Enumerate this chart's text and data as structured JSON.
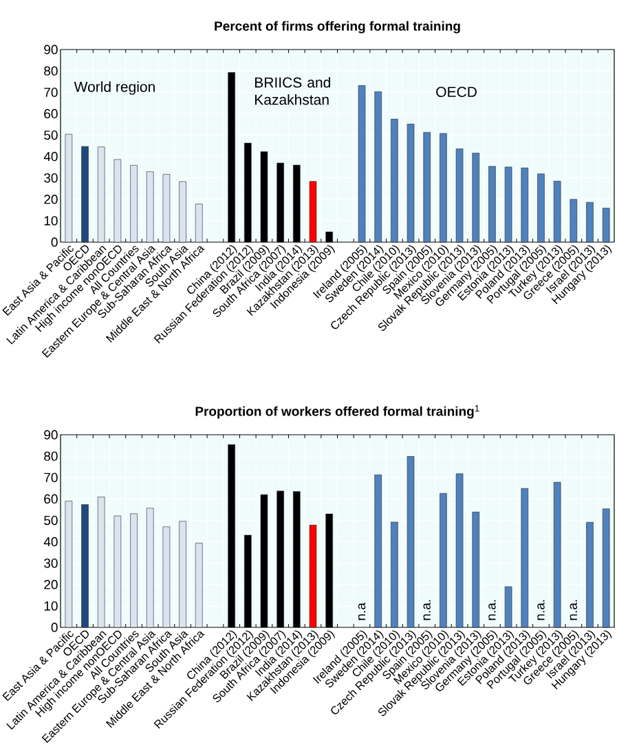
{
  "chart_data": [
    {
      "type": "bar",
      "title": "**Percent of firms offering formal training**",
      "categories": [
        "East Asia & Pacific",
        "OECD",
        "Latin America & Caribbean",
        "High income nonOECD",
        "All Countries",
        "Eastern Europe & Central Asia",
        "Sub-Saharan Africa",
        "South Asia",
        "Middle East & North Africa",
        null,
        "China (2012)",
        "Russian Federation (2012)",
        "Brazil (2009)",
        "South Africa (2007)",
        "India (2014)",
        "Kazakhstan (2013)",
        "Indonesia (2009)",
        null,
        "Ireland (2005)",
        "Sweden (2014)",
        "Chile (2010)",
        "Czech Republic (2013)",
        "Spain (2005)",
        "Mexico (2010)",
        "Slovak Republic (2013)",
        "Slovenia (2013)",
        "Germany (2005)",
        "Estonia (2013)",
        "Poland (2013)",
        "Portugal (2005)",
        "Turkey (2013)",
        "Greece (2005)",
        "Israel (2013)",
        "Hungary (2013)"
      ],
      "values": [
        50.4,
        44.7,
        44.5,
        38.6,
        35.9,
        32.9,
        31.7,
        28.3,
        17.8,
        null,
        79.3,
        46.3,
        42.3,
        37,
        36,
        28.4,
        4.8,
        null,
        73.2,
        70.3,
        57.5,
        55.2,
        51.3,
        50.8,
        43.6,
        41.6,
        35.4,
        35.1,
        34.7,
        31.9,
        28.5,
        20,
        18.6,
        15.9
      ],
      "colors": [
        "#dce3f0",
        "#1f497d",
        "#dce3f0",
        "#dce3f0",
        "#dce3f0",
        "#dce3f0",
        "#dce3f0",
        "#dce3f0",
        "#dce3f0",
        null,
        "#000000",
        "#000000",
        "#000000",
        "#000000",
        "#000000",
        "#ff0000",
        "#000000",
        null,
        "#4f81bd",
        "#4f81bd",
        "#4f81bd",
        "#4f81bd",
        "#4f81bd",
        "#4f81bd",
        "#4f81bd",
        "#4f81bd",
        "#4f81bd",
        "#4f81bd",
        "#4f81bd",
        "#4f81bd",
        "#4f81bd",
        "#4f81bd",
        "#4f81bd",
        "#4f81bd"
      ],
      "ylim": [
        0,
        90
      ],
      "yticks": [
        0,
        10,
        20,
        30,
        40,
        50,
        60,
        70,
        80,
        90
      ],
      "grid": true,
      "annotations": [
        "World region",
        "BRIICS and Kazakhstan",
        "OECD"
      ]
    },
    {
      "type": "bar",
      "title": "**Proportion of workers offered formal training**$^{1}$",
      "categories": [
        "East Asia & Pacific",
        "OECD",
        "Latin America & Caribbean",
        "High income nonOECD",
        "All Countries",
        "Eastern Europe & Central Asia",
        "Sub-Saharan Africa",
        "South Asia",
        "Middle East & North Africa",
        null,
        "China (2012)",
        "Russian Federation (2012)",
        "Brazil (2009)",
        "South Africa (2007)",
        "India (2014)",
        "Kazakhstan (2013)",
        "Indonesia (2009)",
        null,
        "Ireland (2005)",
        "Sweden (2014)",
        "Chile (2010)",
        "Czech Republic (2013)",
        "Spain (2005)",
        "Mexico (2010)",
        "Slovak Republic (2013)",
        "Slovenia (2013)",
        "Germany (2005)",
        "Estonia (2013)",
        "Poland (2013)",
        "Portugal (2005)",
        "Turkey (2013)",
        "Greece (2005)",
        "Israel (2013)",
        "Hungary (2013)"
      ],
      "values": [
        59,
        57.4,
        60.9,
        52.1,
        53.1,
        55.7,
        47,
        49.6,
        39.4,
        null,
        85.4,
        43.1,
        62,
        63.7,
        63.5,
        47.8,
        53,
        null,
        null,
        71.3,
        49.2,
        79.9,
        null,
        62.6,
        71.8,
        53.9,
        null,
        19,
        64.9,
        null,
        67.8,
        null,
        49.1,
        55.4
      ],
      "value_labels": [
        null,
        null,
        null,
        null,
        null,
        null,
        null,
        null,
        null,
        null,
        null,
        null,
        null,
        null,
        null,
        null,
        null,
        null,
        "n.a",
        null,
        null,
        null,
        "n.a.",
        null,
        null,
        null,
        "n.a.",
        null,
        null,
        "n.a.",
        null,
        "n.a.",
        null,
        null
      ],
      "colors": [
        "#dce3f0",
        "#1f497d",
        "#dce3f0",
        "#dce3f0",
        "#dce3f0",
        "#dce3f0",
        "#dce3f0",
        "#dce3f0",
        "#dce3f0",
        null,
        "#000000",
        "#000000",
        "#000000",
        "#000000",
        "#000000",
        "#ff0000",
        "#000000",
        null,
        "#4f81bd",
        "#4f81bd",
        "#4f81bd",
        "#4f81bd",
        "#4f81bd",
        "#4f81bd",
        "#4f81bd",
        "#4f81bd",
        "#4f81bd",
        "#4f81bd",
        "#4f81bd",
        "#4f81bd",
        "#4f81bd",
        "#4f81bd",
        "#4f81bd",
        "#4f81bd"
      ],
      "ylim": [
        0,
        90
      ],
      "yticks": [
        0,
        10,
        20,
        30,
        40,
        50,
        60,
        70,
        80,
        90
      ],
      "grid": true
    }
  ]
}
